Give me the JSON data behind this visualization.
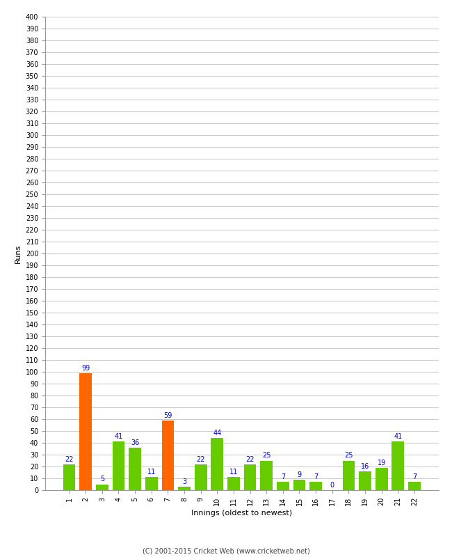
{
  "xlabel": "Innings (oldest to newest)",
  "ylabel": "Runs",
  "categories": [
    1,
    2,
    3,
    4,
    5,
    6,
    7,
    8,
    9,
    10,
    11,
    12,
    13,
    14,
    15,
    16,
    17,
    18,
    19,
    20,
    21,
    22
  ],
  "values": [
    22,
    99,
    5,
    41,
    36,
    11,
    59,
    3,
    22,
    44,
    11,
    22,
    25,
    7,
    9,
    7,
    0,
    25,
    16,
    19,
    41,
    7
  ],
  "bar_colors": [
    "#66cc00",
    "#ff6600",
    "#66cc00",
    "#66cc00",
    "#66cc00",
    "#66cc00",
    "#ff6600",
    "#66cc00",
    "#66cc00",
    "#66cc00",
    "#66cc00",
    "#66cc00",
    "#66cc00",
    "#66cc00",
    "#66cc00",
    "#66cc00",
    "#66cc00",
    "#66cc00",
    "#66cc00",
    "#66cc00",
    "#66cc00",
    "#66cc00"
  ],
  "ylim": [
    0,
    400
  ],
  "yticks": [
    0,
    10,
    20,
    30,
    40,
    50,
    60,
    70,
    80,
    90,
    100,
    110,
    120,
    130,
    140,
    150,
    160,
    170,
    180,
    190,
    200,
    210,
    220,
    230,
    240,
    250,
    260,
    270,
    280,
    290,
    300,
    310,
    320,
    330,
    340,
    350,
    360,
    370,
    380,
    390,
    400
  ],
  "label_color": "#0000cc",
  "label_fontsize": 7,
  "axis_label_fontsize": 8,
  "tick_fontsize": 7,
  "footer": "(C) 2001-2015 Cricket Web (www.cricketweb.net)",
  "background_color": "#ffffff",
  "grid_color": "#cccccc",
  "bar_width": 0.75
}
